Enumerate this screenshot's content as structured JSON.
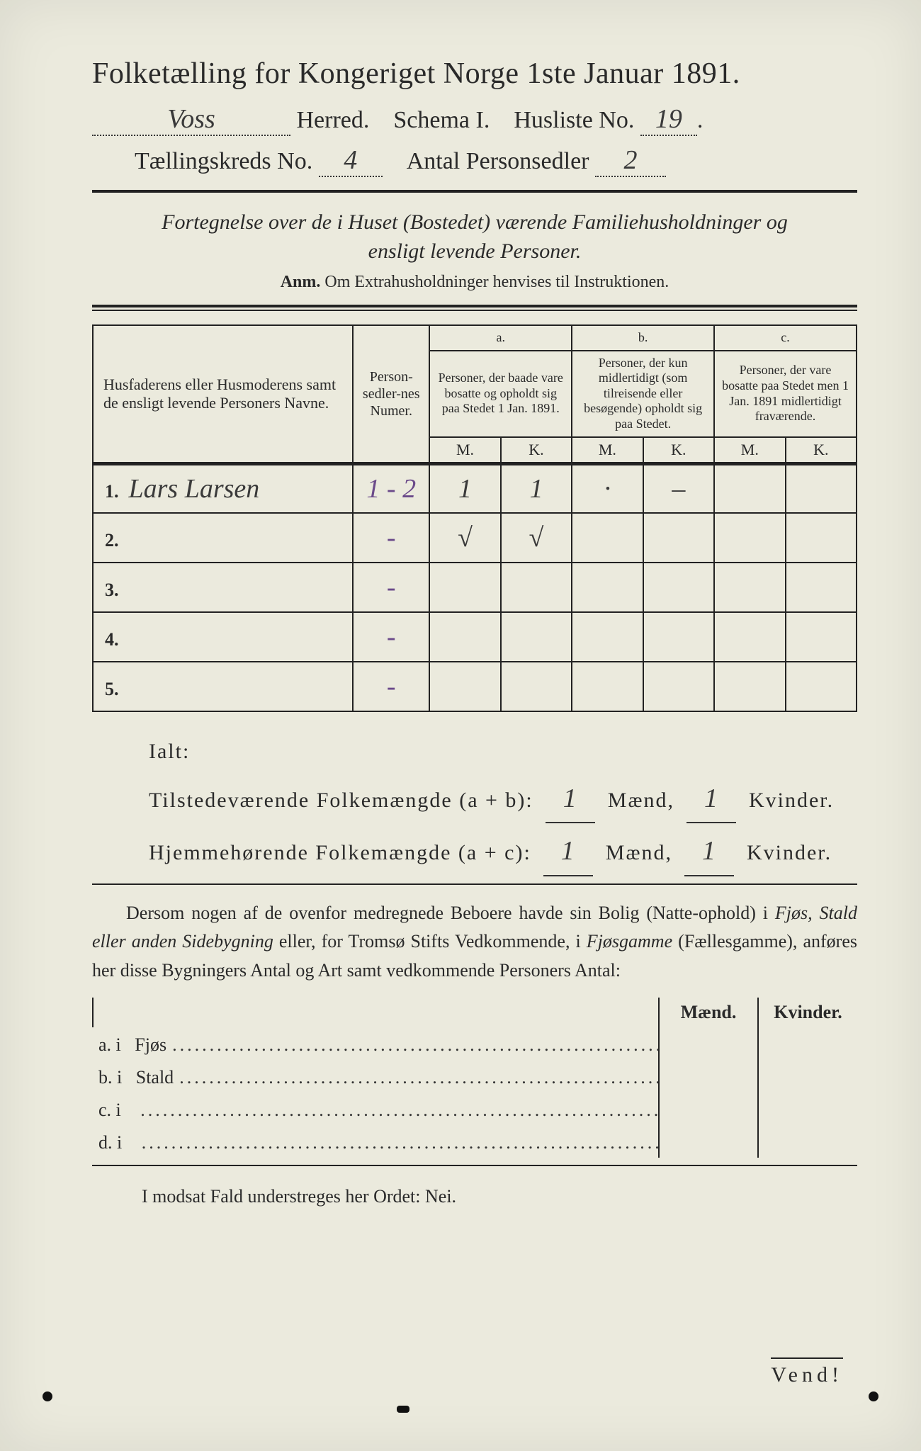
{
  "colors": {
    "paper": "#ebeadd",
    "ink": "#2a2a2a",
    "handwriting": "#3a3a3a",
    "handwriting_purple": "#6b4a8a",
    "rule": "#222222"
  },
  "typography": {
    "title_pt": 42,
    "subhead_pt": 34,
    "body_pt": 26,
    "table_body_pt": 28,
    "table_head_pt": 18
  },
  "header": {
    "title": "Folketælling for Kongeriget Norge 1ste Januar 1891.",
    "herred_value": "Voss",
    "herred_label": "Herred.",
    "schema_label": "Schema I.",
    "husliste_label": "Husliste No.",
    "husliste_no": "19",
    "kreds_label": "Tællingskreds No.",
    "kreds_no": "4",
    "antal_label": "Antal Personsedler",
    "antal_value": "2"
  },
  "fortegnelse": {
    "line": "Fortegnelse over de i Huset (Bostedet) værende Familiehusholdninger og ensligt levende Personer.",
    "anm_label": "Anm.",
    "anm_text": "Om Extrahusholdninger henvises til Instruktionen."
  },
  "table": {
    "type": "table",
    "columns": {
      "names": "Husfaderens eller Husmoderens samt de ensligt levende Personers Navne.",
      "pnum": "Person-sedler-nes Numer.",
      "a_label": "a.",
      "a_text": "Personer, der baade vare bosatte og opholdt sig paa Stedet 1 Jan. 1891.",
      "b_label": "b.",
      "b_text": "Personer, der kun midlertidigt (som tilreisende eller besøgende) opholdt sig paa Stedet.",
      "c_label": "c.",
      "c_text": "Personer, der vare bosatte paa Stedet men 1 Jan. 1891 midlertidigt fraværende.",
      "M": "M.",
      "K": "K."
    },
    "rows": [
      {
        "n": "1.",
        "name": "Lars Larsen",
        "pnum": "1 - 2",
        "aM": "1",
        "aK": "1",
        "bM": "·",
        "bK": "–",
        "cM": "",
        "cK": ""
      },
      {
        "n": "2.",
        "name": "",
        "pnum": "-",
        "aM": "√",
        "aK": "√",
        "bM": "",
        "bK": "",
        "cM": "",
        "cK": ""
      },
      {
        "n": "3.",
        "name": "",
        "pnum": "-",
        "aM": "",
        "aK": "",
        "bM": "",
        "bK": "",
        "cM": "",
        "cK": ""
      },
      {
        "n": "4.",
        "name": "",
        "pnum": "-",
        "aM": "",
        "aK": "",
        "bM": "",
        "bK": "",
        "cM": "",
        "cK": ""
      },
      {
        "n": "5.",
        "name": "",
        "pnum": "-",
        "aM": "",
        "aK": "",
        "bM": "",
        "bK": "",
        "cM": "",
        "cK": ""
      }
    ]
  },
  "totals": {
    "ialt_label": "Ialt:",
    "tilstede_label": "Tilstedeværende Folkemængde (a + b):",
    "hjemme_label": "Hjemmehørende Folkemængde (a + c):",
    "maend": "Mænd,",
    "kvinder": "Kvinder.",
    "tilstede_m": "1",
    "tilstede_k": "1",
    "hjemme_m": "1",
    "hjemme_k": "1"
  },
  "note": {
    "text1": "Dersom nogen af de ovenfor medregnede Beboere havde sin Bolig (Natte-ophold) i ",
    "em1": "Fjøs, Stald eller anden Sidebygning",
    "text2": " eller, for Tromsø Stifts Vedkommende, i ",
    "em2": "Fjøsgamme",
    "text3": " (Fællesgamme), anføres her disse Bygningers Antal og Art samt vedkommende Personers Antal:"
  },
  "bygn": {
    "head_m": "Mænd.",
    "head_k": "Kvinder.",
    "rows": [
      {
        "prefix": "a.  i",
        "label": "Fjøs"
      },
      {
        "prefix": "b.  i",
        "label": "Stald"
      },
      {
        "prefix": "c.  i",
        "label": ""
      },
      {
        "prefix": "d.  i",
        "label": ""
      }
    ]
  },
  "footer": {
    "modsat": "I modsat Fald understreges her Ordet: Nei.",
    "vend": "Vend!"
  }
}
